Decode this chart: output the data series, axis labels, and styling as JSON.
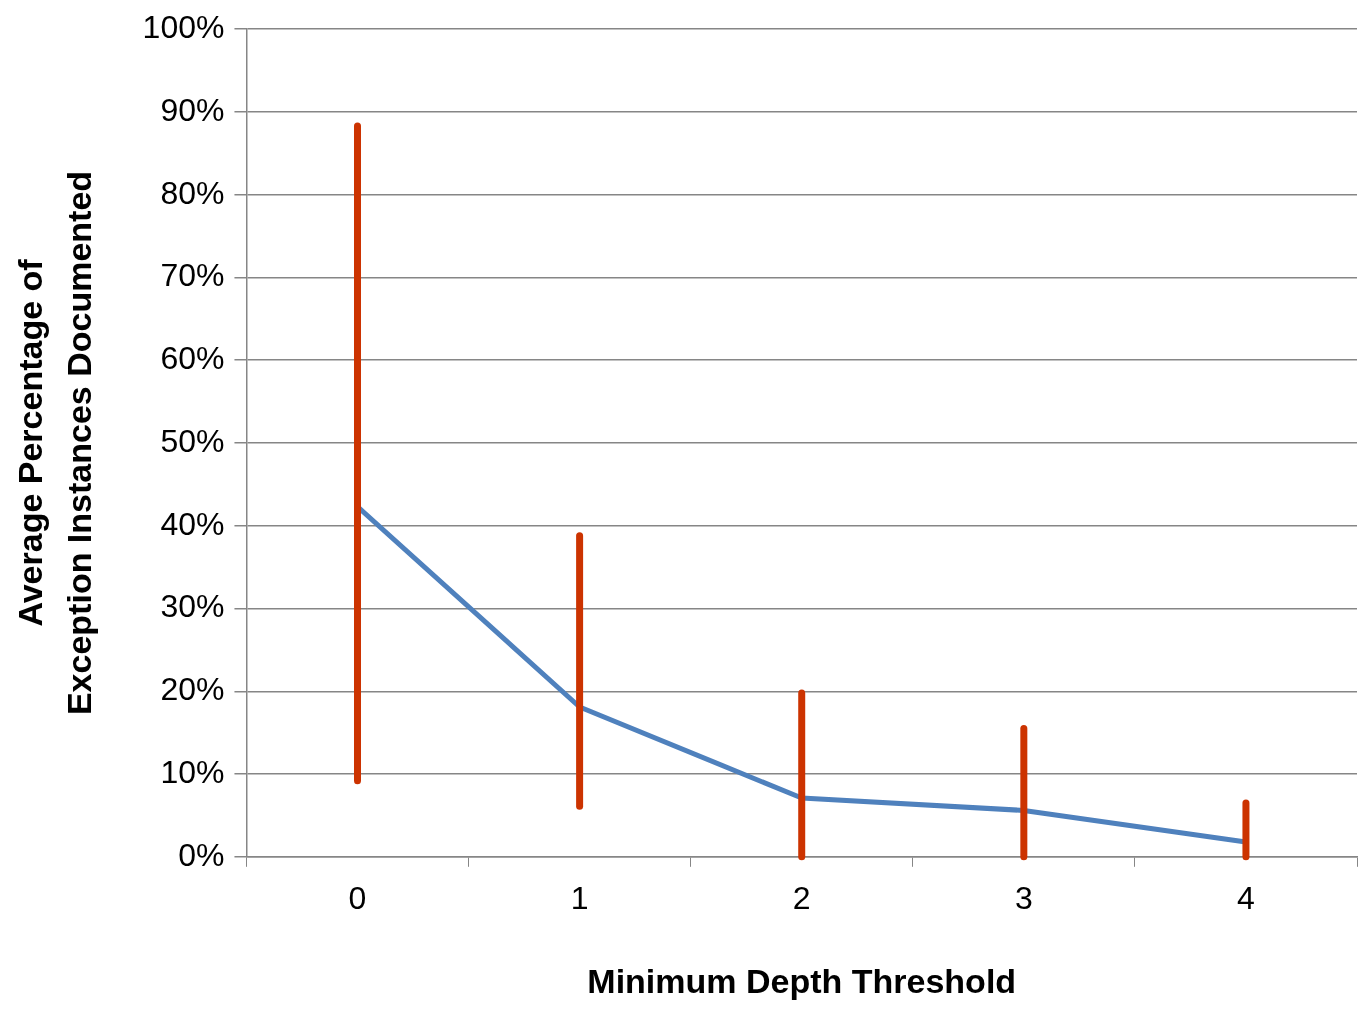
{
  "chart_data": {
    "type": "line",
    "xlabel": "Minimum Depth Threshold",
    "ylabel": "Average Percentage of\nException Instances Documented",
    "categories": [
      "0",
      "1",
      "2",
      "3",
      "4"
    ],
    "series": [
      {
        "color": "#4f81bd",
        "values": [
          42.3,
          18.1,
          7.1,
          5.6,
          1.8
        ],
        "errors": [
          [
            9.2,
            88.3
          ],
          [
            6.1,
            38.8
          ],
          [
            0,
            19.8
          ],
          [
            0,
            15.5
          ],
          [
            0,
            6.5
          ]
        ]
      }
    ],
    "ylim": [
      0,
      100
    ],
    "yticks": [
      {
        "value": 0,
        "label": "0%"
      },
      {
        "value": 10,
        "label": "10%"
      },
      {
        "value": 20,
        "label": "20%"
      },
      {
        "value": 30,
        "label": "30%"
      },
      {
        "value": 40,
        "label": "40%"
      },
      {
        "value": 50,
        "label": "50%"
      },
      {
        "value": 60,
        "label": "60%"
      },
      {
        "value": 70,
        "label": "70%"
      },
      {
        "value": 80,
        "label": "80%"
      },
      {
        "value": 90,
        "label": "90%"
      },
      {
        "value": 100,
        "label": "100%"
      }
    ],
    "grid": "y",
    "marker": "none",
    "line_style": "solid",
    "legend": false
  }
}
